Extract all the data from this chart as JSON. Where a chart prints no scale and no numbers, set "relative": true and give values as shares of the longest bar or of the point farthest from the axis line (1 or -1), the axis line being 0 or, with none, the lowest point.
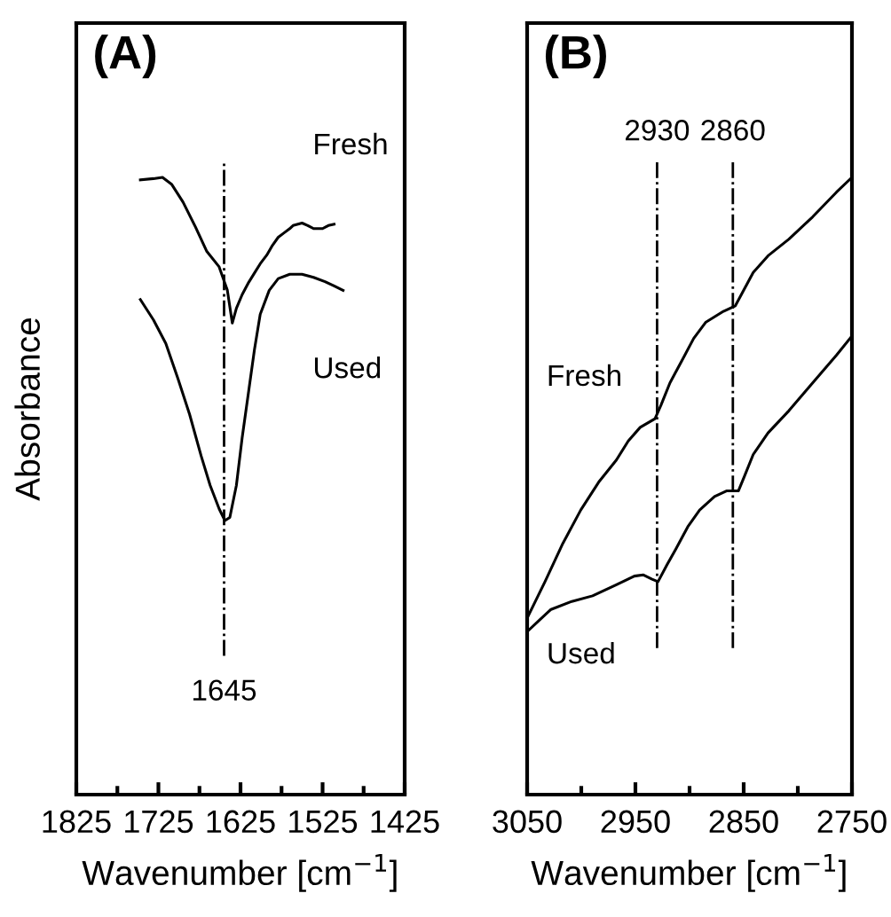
{
  "chart_data": [
    {
      "type": "line",
      "title": "(A)",
      "ylabel": "Absorbance",
      "xlabel": "Wavenumber [cm$^{−1}$]",
      "relative": true,
      "xlim": [
        1825,
        1425
      ],
      "xticks": [
        1825,
        {
          "value": 1775,
          "label": null
        },
        1725,
        {
          "value": 1675,
          "label": null
        },
        1625,
        {
          "value": 1575,
          "label": null
        },
        1525,
        {
          "value": 1475,
          "label": null
        },
        1425
      ],
      "tick_labels": "x",
      "grid": false,
      "legend": false,
      "marker": "none",
      "line_style": "solid",
      "series": [
        {
          "name": "Fresh",
          "color": "#000000",
          "x": [
            1747,
            1731,
            1720,
            1709,
            1695,
            1680,
            1666,
            1651,
            1641,
            1635,
            1630,
            1623,
            1615,
            1608,
            1601,
            1593,
            1586,
            1579,
            1572,
            1565,
            1561,
            1550,
            1543,
            1536,
            1525,
            1518,
            1511
          ],
          "values": [
            0.996,
            0.998,
            1.0,
            0.989,
            0.96,
            0.92,
            0.88,
            0.855,
            0.817,
            0.764,
            0.788,
            0.81,
            0.83,
            0.845,
            0.86,
            0.874,
            0.89,
            0.903,
            0.91,
            0.917,
            0.922,
            0.926,
            0.922,
            0.917,
            0.917,
            0.922,
            0.924
          ]
        },
        {
          "name": "Used",
          "color": "#000000",
          "x": [
            1747,
            1731,
            1716,
            1701,
            1687,
            1673,
            1662,
            1651,
            1644,
            1638,
            1630,
            1623,
            1615,
            1608,
            1601,
            1590,
            1579,
            1565,
            1550,
            1536,
            1522,
            1511,
            1500
          ],
          "values": [
            0.802,
            0.769,
            0.731,
            0.673,
            0.616,
            0.549,
            0.501,
            0.463,
            0.444,
            0.449,
            0.501,
            0.578,
            0.654,
            0.721,
            0.778,
            0.817,
            0.836,
            0.843,
            0.843,
            0.838,
            0.831,
            0.824,
            0.817
          ]
        }
      ],
      "ref_lines": [
        {
          "axis": "x",
          "value": 1645,
          "label": "1645",
          "color": "#000000",
          "line_style": "dashdot"
        }
      ]
    },
    {
      "type": "line",
      "title": "(B)",
      "xlabel": "Wavenumber [cm$^{−1}$]",
      "relative": true,
      "xlim": [
        3050,
        2750
      ],
      "xticks": [
        3050,
        {
          "value": 3000,
          "label": null
        },
        2950,
        {
          "value": 2900,
          "label": null
        },
        2850,
        {
          "value": 2800,
          "label": null
        },
        2750
      ],
      "tick_labels": "x",
      "grid": false,
      "legend": false,
      "marker": "none",
      "line_style": "solid",
      "series": [
        {
          "name": "Fresh",
          "color": "#000000",
          "x": [
            3050,
            3033.5,
            3017,
            3000.5,
            2984,
            2967.6,
            2956.6,
            2945.6,
            2931.9,
            2926.4,
            2918.1,
            2907.1,
            2896.2,
            2885.2,
            2868.7,
            2857.7,
            2852.2,
            2841.2,
            2827.5,
            2808.2,
            2786.3,
            2764.3,
            2750
          ],
          "values": [
            0.286,
            0.345,
            0.407,
            0.461,
            0.506,
            0.542,
            0.573,
            0.595,
            0.609,
            0.631,
            0.667,
            0.703,
            0.739,
            0.765,
            0.783,
            0.792,
            0.81,
            0.846,
            0.873,
            0.9,
            0.936,
            0.976,
            1.0
          ]
        },
        {
          "name": "Used",
          "color": "#000000",
          "x": [
            3050,
            3039,
            3028,
            3008.8,
            2989.6,
            2967.6,
            2951,
            2942.9,
            2934.6,
            2929.1,
            2920.9,
            2912.6,
            2901.6,
            2890.7,
            2876.9,
            2865.9,
            2854.9,
            2849.5,
            2841.2,
            2827.5,
            2808.2,
            2786.3,
            2764.3,
            2750
          ],
          "values": [
            0.264,
            0.282,
            0.3,
            0.313,
            0.322,
            0.34,
            0.354,
            0.356,
            0.349,
            0.345,
            0.372,
            0.398,
            0.434,
            0.461,
            0.483,
            0.492,
            0.492,
            0.515,
            0.551,
            0.586,
            0.622,
            0.667,
            0.712,
            0.743
          ]
        }
      ],
      "ref_lines": [
        {
          "axis": "x",
          "value": 2930,
          "label": "2930",
          "color": "#000000",
          "line_style": "dashdot"
        },
        {
          "axis": "x",
          "value": 2860,
          "label": "2860",
          "color": "#000000",
          "line_style": "dashdot"
        }
      ]
    }
  ]
}
